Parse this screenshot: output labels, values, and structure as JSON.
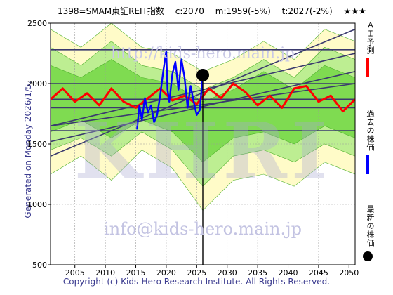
{
  "header": {
    "title": "1398=SMAM東証REIT指数",
    "current": "c:2070",
    "model": "m:1959(-5%)",
    "target": "t:2027(-2%)",
    "rating": "★★★"
  },
  "side_label": "Generated on Monday 2026/1/5.",
  "footer": "Copyright (c) Kids-Hero Research Institute. All Rights Reserved.",
  "watermark": {
    "top": "http://kids-hero.main.jp",
    "big": "KHRI",
    "email": "info@kids-hero.main.jp"
  },
  "legend": {
    "ai": "ＡＩ予測",
    "past": "過去の株価",
    "latest": "最新の株価"
  },
  "colors": {
    "ai": "#ff0000",
    "past": "#0000ff",
    "latest": "#000000",
    "band_outer": "#fffbc2",
    "band_mid": "#b6ec8c",
    "band_inner": "#78d84a",
    "channel": "#3a3a6e",
    "grid": "#999999"
  },
  "chart_data": {
    "type": "line",
    "title": "1398=SMAM東証REIT指数",
    "xlim": [
      2001,
      2051
    ],
    "ylim": [
      500,
      2500
    ],
    "x_ticks": [
      2005,
      2010,
      2015,
      2020,
      2025,
      2030,
      2035,
      2040,
      2045,
      2050
    ],
    "y_ticks": [
      500,
      1000,
      1500,
      2000,
      2500
    ],
    "grid": true,
    "now": 2026.0,
    "latest_point": {
      "x": 2026.0,
      "y": 2070
    },
    "series": [
      {
        "name": "ＡＩ予測",
        "x": [
          2001,
          2003,
          2005,
          2007,
          2009,
          2011,
          2013,
          2015,
          2017,
          2019,
          2021,
          2023,
          2025,
          2027,
          2029,
          2031,
          2033,
          2035,
          2037,
          2039,
          2041,
          2043,
          2045,
          2047,
          2049,
          2051
        ],
        "values": [
          1870,
          1960,
          1850,
          1920,
          1820,
          1960,
          1850,
          1800,
          1880,
          1960,
          1860,
          1900,
          1830,
          1960,
          1880,
          2000,
          1930,
          1820,
          1900,
          1800,
          1960,
          1980,
          1850,
          1900,
          1770,
          1870
        ]
      },
      {
        "name": "過去の株価",
        "x": [
          2015.2,
          2015.6,
          2016.0,
          2016.5,
          2017.0,
          2017.5,
          2018.0,
          2018.5,
          2019.0,
          2019.5,
          2020.0,
          2020.2,
          2020.5,
          2021.0,
          2021.5,
          2022.0,
          2022.5,
          2023.0,
          2023.5,
          2024.0,
          2024.5,
          2025.0,
          2025.5,
          2026.0
        ],
        "values": [
          1620,
          1820,
          1700,
          1880,
          1760,
          1820,
          1680,
          1740,
          1900,
          2100,
          2270,
          1950,
          1850,
          2080,
          2180,
          1950,
          2200,
          2050,
          1800,
          1980,
          1850,
          1740,
          1780,
          2070
        ]
      }
    ],
    "bands": [
      {
        "x": [
          2001,
          2006,
          2011,
          2016,
          2021,
          2026,
          2031,
          2036,
          2041,
          2046,
          2051
        ],
        "upper": [
          2450,
          2300,
          2500,
          2300,
          2250,
          2100,
          2200,
          2350,
          2200,
          2450,
          2350
        ],
        "lower": [
          1250,
          1400,
          1200,
          1450,
          1300,
          950,
          1200,
          1250,
          1150,
          1350,
          1250
        ]
      },
      {
        "x": [
          2001,
          2006,
          2011,
          2016,
          2021,
          2026,
          2031,
          2036,
          2041,
          2046,
          2051
        ],
        "upper": [
          2300,
          2150,
          2350,
          2150,
          2100,
          1950,
          2050,
          2200,
          2050,
          2300,
          2200
        ],
        "lower": [
          1450,
          1550,
          1400,
          1600,
          1450,
          1150,
          1400,
          1450,
          1350,
          1500,
          1400
        ]
      },
      {
        "x": [
          2001,
          2006,
          2011,
          2016,
          2021,
          2026,
          2031,
          2036,
          2041,
          2046,
          2051
        ],
        "upper": [
          2150,
          2050,
          2200,
          2050,
          2000,
          1850,
          1950,
          2100,
          1950,
          2150,
          2050
        ],
        "lower": [
          1600,
          1700,
          1550,
          1700,
          1600,
          1350,
          1550,
          1600,
          1500,
          1650,
          1550
        ]
      }
    ],
    "channel_lines": [
      {
        "x": [
          2001,
          2051
        ],
        "y": [
          1400,
          2450
        ]
      },
      {
        "x": [
          2001,
          2051
        ],
        "y": [
          1650,
          2250
        ]
      },
      {
        "x": [
          2001,
          2051
        ],
        "y": [
          1520,
          2100
        ]
      },
      {
        "x": [
          2001,
          2051
        ],
        "y": [
          1650,
          2000
        ]
      },
      {
        "x": [
          2001,
          2051
        ],
        "y": [
          1870,
          1870
        ]
      },
      {
        "x": [
          2001,
          2051
        ],
        "y": [
          1800,
          1800
        ]
      },
      {
        "x": [
          2001,
          2051
        ],
        "y": [
          2280,
          2280
        ]
      },
      {
        "x": [
          2001,
          2051
        ],
        "y": [
          1610,
          1610
        ]
      },
      {
        "x": [
          2001,
          2051
        ],
        "y": [
          2000,
          2000
        ]
      }
    ]
  }
}
